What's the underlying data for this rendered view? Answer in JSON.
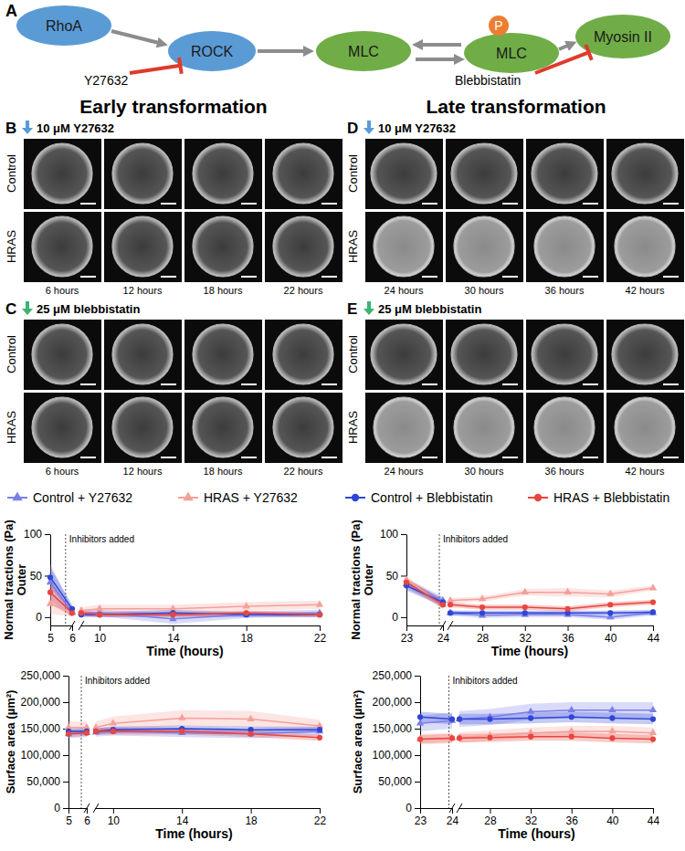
{
  "diagram": {
    "label": "A",
    "nodes": [
      {
        "label": "RhoA"
      },
      {
        "label": "ROCK"
      },
      {
        "label": "MLC"
      },
      {
        "label": "MLC",
        "badge": "P"
      },
      {
        "label": "Myosin II"
      }
    ],
    "inhibitors": [
      {
        "label": "Y27632",
        "target": 1
      },
      {
        "label": "Blebbistatin",
        "target": 4
      }
    ]
  },
  "headings": [
    "Early transformation",
    "Late transformation"
  ],
  "image_panels": [
    {
      "label": "B",
      "treatment": "10 μM Y27632",
      "rows": [
        "Control",
        "HRAS"
      ],
      "times": [
        "6 hours",
        "12 hours",
        "18 hours",
        "22 hours"
      ]
    },
    {
      "label": "C",
      "treatment": "25 μM blebbistatin",
      "rows": [
        "Control",
        "HRAS"
      ],
      "times": [
        "6 hours",
        "12 hours",
        "18 hours",
        "22 hours"
      ]
    },
    {
      "label": "D",
      "treatment": "10 μM Y27632",
      "rows": [
        "Control",
        "HRAS"
      ],
      "times": [
        "24 hours",
        "30 hours",
        "36 hours",
        "42 hours"
      ]
    },
    {
      "label": "E",
      "treatment": "25 μM blebbistatin",
      "rows": [
        "Control",
        "HRAS"
      ],
      "times": [
        "24 hours",
        "30 hours",
        "36 hours",
        "42 hours"
      ]
    }
  ],
  "chart_data": [
    {
      "type": "line",
      "x_label": "Time (hours)",
      "y_label": "Normal tractions (Pa)",
      "y_label_2": "Outer",
      "x": [
        5,
        6,
        9,
        10,
        14,
        18,
        22
      ],
      "xlim": [
        5,
        22
      ],
      "xbreak": [
        6,
        9
      ],
      "xticks": [
        5,
        6,
        10,
        14,
        18,
        22
      ],
      "ylim": [
        -10,
        100
      ],
      "yticks": [
        0,
        50,
        100
      ],
      "annotation": {
        "x": 5.7,
        "text": "Inhibitors added"
      },
      "series": [
        {
          "name": "Control + Y27632",
          "color": "#7b7fe8",
          "marker": "triangle",
          "values": [
            42,
            6,
            5,
            5,
            -2,
            3,
            5
          ],
          "errors": [
            22,
            5,
            4,
            4,
            6,
            4,
            4
          ]
        },
        {
          "name": "HRAS + Y27632",
          "color": "#f4a09a",
          "marker": "triangle",
          "values": [
            16,
            5,
            8,
            10,
            10,
            13,
            15
          ],
          "errors": [
            12,
            4,
            4,
            5,
            5,
            5,
            5
          ]
        },
        {
          "name": "Control + Blebbistatin",
          "color": "#2f45d6",
          "marker": "circle",
          "values": [
            48,
            10,
            3,
            3,
            5,
            3,
            3
          ],
          "errors": [
            12,
            5,
            3,
            3,
            4,
            3,
            3
          ]
        },
        {
          "name": "HRAS + Blebbistatin",
          "color": "#e8463e",
          "marker": "circle",
          "values": [
            30,
            5,
            5,
            3,
            3,
            5,
            3
          ],
          "errors": [
            14,
            4,
            3,
            3,
            3,
            3,
            3
          ]
        }
      ]
    },
    {
      "type": "line",
      "x_label": "Time (hours)",
      "y_label": "Surface area (µm²)",
      "x": [
        5,
        6,
        9,
        10,
        14,
        18,
        22
      ],
      "xlim": [
        5,
        22
      ],
      "xbreak": [
        6,
        9
      ],
      "xticks": [
        5,
        6,
        10,
        14,
        18,
        22
      ],
      "ylim": [
        0,
        250000
      ],
      "yticks": [
        0,
        {
          "value": 50000,
          "label": "50,000"
        },
        {
          "value": 100000,
          "label": "100,000"
        },
        {
          "value": 150000,
          "label": "150,000"
        },
        {
          "value": 200000,
          "label": "200,000"
        },
        {
          "value": 250000,
          "label": "250,000"
        }
      ],
      "annotation": {
        "x": 5.7,
        "text": "Inhibitors added"
      },
      "series": [
        {
          "name": "Control + Y27632",
          "color": "#7b7fe8",
          "marker": "triangle",
          "values": [
            140000,
            142000,
            143000,
            145000,
            142000,
            140000,
            145000
          ],
          "errors": [
            8000,
            8000,
            8000,
            8000,
            8000,
            8000,
            8000
          ]
        },
        {
          "name": "HRAS + Y27632",
          "color": "#f4a09a",
          "marker": "triangle",
          "values": [
            152000,
            152000,
            152000,
            160000,
            170000,
            168000,
            155000
          ],
          "errors": [
            12000,
            12000,
            12000,
            13000,
            15000,
            15000,
            12000
          ]
        },
        {
          "name": "Control + Blebbistatin",
          "color": "#2f45d6",
          "marker": "circle",
          "values": [
            145000,
            145000,
            145000,
            148000,
            150000,
            148000,
            148000
          ],
          "errors": [
            6000,
            6000,
            6000,
            6000,
            6000,
            6000,
            6000
          ]
        },
        {
          "name": "HRAS + Blebbistatin",
          "color": "#e8463e",
          "marker": "circle",
          "values": [
            140000,
            142000,
            145000,
            145000,
            145000,
            140000,
            133000
          ],
          "errors": [
            6000,
            6000,
            6000,
            6000,
            6000,
            6000,
            6000
          ]
        }
      ]
    },
    {
      "type": "line",
      "x_label": "Time (hours)",
      "y_label": "Normal tractions (Pa)",
      "y_label_2": "Outer",
      "x": [
        23,
        24,
        25,
        28,
        32,
        36,
        40,
        44
      ],
      "xlim": [
        23,
        44
      ],
      "xbreak": [
        24,
        25
      ],
      "xticks": [
        23,
        24,
        28,
        32,
        36,
        40,
        44
      ],
      "ylim": [
        -10,
        100
      ],
      "yticks": [
        0,
        50,
        100
      ],
      "annotation": {
        "x": 23.9,
        "text": "Inhibitors added"
      },
      "series": [
        {
          "name": "Control + Y27632",
          "color": "#7b7fe8",
          "marker": "triangle",
          "values": [
            40,
            20,
            5,
            2,
            3,
            3,
            0,
            5
          ],
          "errors": [
            6,
            5,
            3,
            3,
            3,
            3,
            3,
            3
          ]
        },
        {
          "name": "HRAS + Y27632",
          "color": "#f4a09a",
          "marker": "triangle",
          "values": [
            45,
            15,
            20,
            22,
            30,
            30,
            28,
            35
          ],
          "errors": [
            4,
            5,
            3,
            3,
            4,
            5,
            4,
            3
          ]
        },
        {
          "name": "Control + Blebbistatin",
          "color": "#2f45d6",
          "marker": "circle",
          "values": [
            38,
            18,
            5,
            5,
            5,
            5,
            5,
            6
          ],
          "errors": [
            6,
            5,
            3,
            3,
            3,
            3,
            3,
            3
          ]
        },
        {
          "name": "HRAS + Blebbistatin",
          "color": "#e8463e",
          "marker": "circle",
          "values": [
            42,
            15,
            15,
            12,
            12,
            10,
            15,
            18
          ],
          "errors": [
            5,
            5,
            3,
            3,
            3,
            3,
            3,
            3
          ]
        }
      ]
    },
    {
      "type": "line",
      "x_label": "Time (hours)",
      "y_label": "Surface area (µm²)",
      "x": [
        23,
        24,
        25,
        28,
        32,
        36,
        40,
        44
      ],
      "xlim": [
        23,
        44
      ],
      "xbreak": [
        24,
        25
      ],
      "xticks": [
        23,
        24,
        28,
        32,
        36,
        40,
        44
      ],
      "ylim": [
        0,
        250000
      ],
      "yticks": [
        0,
        {
          "value": 50000,
          "label": "50,000"
        },
        {
          "value": 100000,
          "label": "100,000"
        },
        {
          "value": 150000,
          "label": "150,000"
        },
        {
          "value": 200000,
          "label": "200,000"
        },
        {
          "value": 250000,
          "label": "250,000"
        }
      ],
      "annotation": {
        "x": 23.9,
        "text": "Inhibitors added"
      },
      "series": [
        {
          "name": "Control + Y27632",
          "color": "#7b7fe8",
          "marker": "triangle",
          "values": [
            160000,
            165000,
            168000,
            172000,
            182000,
            185000,
            185000,
            185000
          ],
          "errors": [
            15000,
            15000,
            15000,
            15000,
            15000,
            15000,
            15000,
            15000
          ]
        },
        {
          "name": "HRAS + Y27632",
          "color": "#f4a09a",
          "marker": "triangle",
          "values": [
            130000,
            132000,
            133000,
            137000,
            142000,
            145000,
            145000,
            142000
          ],
          "errors": [
            10000,
            10000,
            10000,
            10000,
            10000,
            10000,
            10000,
            10000
          ]
        },
        {
          "name": "Control + Blebbistatin",
          "color": "#2f45d6",
          "marker": "circle",
          "values": [
            172000,
            168000,
            168000,
            168000,
            170000,
            172000,
            170000,
            168000
          ],
          "errors": [
            10000,
            10000,
            10000,
            10000,
            10000,
            10000,
            10000,
            10000
          ]
        },
        {
          "name": "HRAS + Blebbistatin",
          "color": "#e8463e",
          "marker": "circle",
          "values": [
            130000,
            132000,
            132000,
            133000,
            135000,
            135000,
            132000,
            130000
          ],
          "errors": [
            8000,
            8000,
            8000,
            8000,
            8000,
            8000,
            8000,
            8000
          ]
        }
      ]
    }
  ]
}
